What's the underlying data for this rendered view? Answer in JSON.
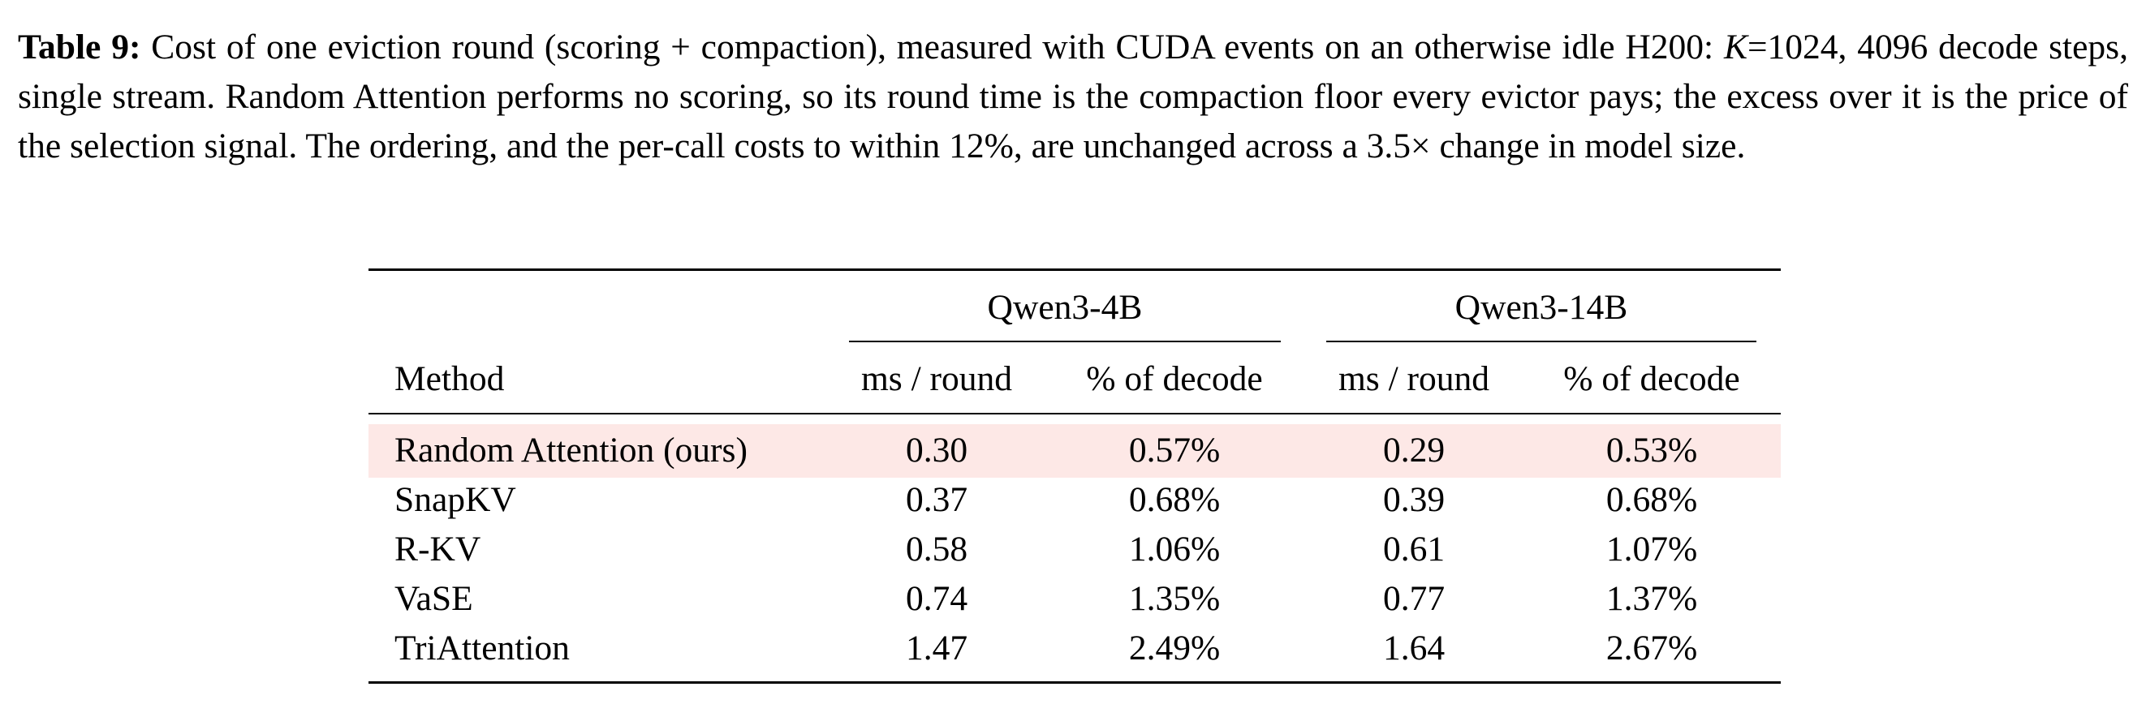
{
  "caption": {
    "label": "Table 9:",
    "text_1": " Cost of one eviction round (scoring + compaction), measured with CUDA events on an otherwise idle H200: ",
    "k_var": "K",
    "text_2": "=1024, 4096 decode steps, single stream. Random Attention performs no scoring, so its round time is the compaction floor every evictor pays; the excess over it is the price of the selection signal. The ordering, and the per-call costs to within 12%, are unchanged across a 3.5× change in model size."
  },
  "table": {
    "groups": [
      "Qwen3-4B",
      "Qwen3-14B"
    ],
    "columns": [
      "Method",
      "ms / round",
      "% of decode",
      "ms / round",
      "% of decode"
    ],
    "rows": [
      {
        "method": "Random Attention (ours)",
        "ms4": "0.30",
        "pct4": "0.57%",
        "ms14": "0.29",
        "pct14": "0.53%",
        "highlight": true
      },
      {
        "method": "SnapKV",
        "ms4": "0.37",
        "pct4": "0.68%",
        "ms14": "0.39",
        "pct14": "0.68%"
      },
      {
        "method": "R-KV",
        "ms4": "0.58",
        "pct4": "1.06%",
        "ms14": "0.61",
        "pct14": "1.07%"
      },
      {
        "method": "VaSE",
        "ms4": "0.74",
        "pct4": "1.35%",
        "ms14": "0.77",
        "pct14": "1.37%"
      },
      {
        "method": "TriAttention",
        "ms4": "1.47",
        "pct4": "2.49%",
        "ms14": "1.64",
        "pct14": "2.67%"
      }
    ],
    "highlight_color": "#fde8e6"
  }
}
